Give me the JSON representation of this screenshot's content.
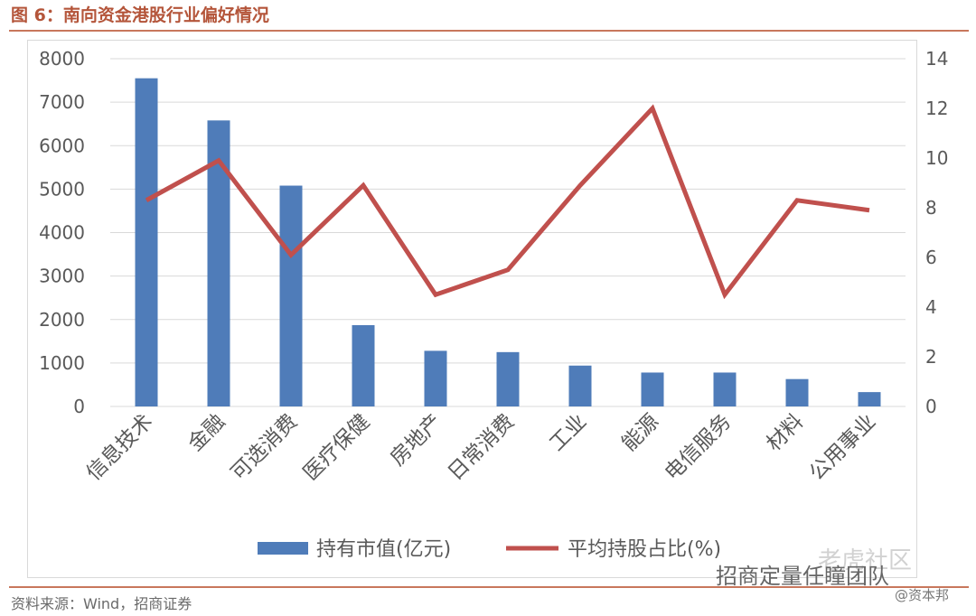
{
  "figure_title": "图 6：南向资金港股行业偏好情况",
  "source": "资料来源：Wind，招商证券",
  "watermarks": {
    "community": "老虎社区",
    "team": "招商定量任瞳团队",
    "handle": "@资本邦"
  },
  "colors": {
    "bar": "#4f7cb9",
    "line": "#c0504d",
    "title": "#b4553a",
    "rule": "#c8775c",
    "grid": "#d9d9d9",
    "text": "#595959"
  },
  "chart_data": {
    "type": "bar",
    "categories": [
      "信息技术",
      "金融",
      "可选消费",
      "医疗保健",
      "房地产",
      "日常消费",
      "工业",
      "能源",
      "电信服务",
      "材料",
      "公用事业"
    ],
    "series": [
      {
        "name": "持有市值(亿元)",
        "type": "bar",
        "axis": "left",
        "values": [
          7550,
          6580,
          5080,
          1870,
          1280,
          1250,
          940,
          780,
          780,
          630,
          330
        ]
      },
      {
        "name": "平均持股占比(%)",
        "type": "line",
        "axis": "right",
        "values": [
          8.3,
          9.9,
          6.1,
          8.9,
          4.5,
          5.5,
          8.9,
          12.0,
          4.5,
          8.3,
          7.9
        ]
      }
    ],
    "ylim_left": [
      0,
      8000
    ],
    "ylim_right": [
      0,
      14
    ],
    "yticks_left": [
      "0",
      "1000",
      "2000",
      "3000",
      "4000",
      "5000",
      "6000",
      "7000",
      "8000"
    ],
    "yticks_right": [
      "0",
      "2",
      "4",
      "6",
      "8",
      "10",
      "12",
      "14"
    ],
    "grid": true,
    "legend": "bottom"
  }
}
